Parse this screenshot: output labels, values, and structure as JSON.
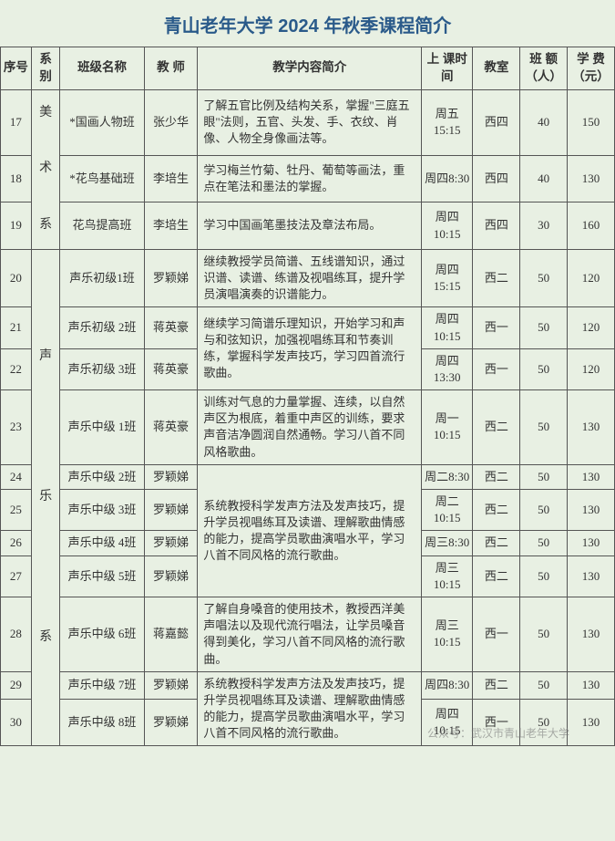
{
  "title": "青山老年大学 2024 年秋季课程简介",
  "columns": {
    "seq": "序号",
    "dept": "系别",
    "class": "班级名称",
    "teacher": "教 师",
    "desc": "教学内容简介",
    "time": "上 课时 间",
    "room": "教室",
    "cap": "班 额（人）",
    "fee": "学 费（元）"
  },
  "dept_art": "美术系",
  "dept_music": "声乐系",
  "rows": {
    "r17": {
      "seq": "17",
      "class": "*国画人物班",
      "teacher": "张少华",
      "desc": "了解五官比例及结构关系，掌握\"三庭五眼\"法则，五官、头发、手、衣纹、肖像、人物全身像画法等。",
      "time": "周五15:15",
      "room": "西四",
      "cap": "40",
      "fee": "150"
    },
    "r18": {
      "seq": "18",
      "class": "*花鸟基础班",
      "teacher": "李培生",
      "desc": "学习梅兰竹菊、牡丹、葡萄等画法，重点在笔法和墨法的掌握。",
      "time": "周四8:30",
      "room": "西四",
      "cap": "40",
      "fee": "130"
    },
    "r19": {
      "seq": "19",
      "class": "花鸟提高班",
      "teacher": "李培生",
      "desc": "学习中国画笔墨技法及章法布局。",
      "time": "周四10:15",
      "room": "西四",
      "cap": "30",
      "fee": "160"
    },
    "r20": {
      "seq": "20",
      "class": "声乐初级1班",
      "teacher": "罗颖娣",
      "desc": "继续教授学员简谱、五线谱知识，通过识谱、读谱、练谱及视唱练耳，提升学员演唱演奏的识谱能力。",
      "time": "周四15:15",
      "room": "西二",
      "cap": "50",
      "fee": "120"
    },
    "r21": {
      "seq": "21",
      "class": "声乐初级 2班",
      "teacher": "蒋英豪",
      "time": "周四10:15",
      "room": "西一",
      "cap": "50",
      "fee": "120"
    },
    "r22": {
      "seq": "22",
      "class": "声乐初级 3班",
      "teacher": "蒋英豪",
      "time": "周四13:30",
      "room": "西一",
      "cap": "50",
      "fee": "120"
    },
    "desc2122": "继续学习简谱乐理知识，开始学习和声与和弦知识，加强视唱练耳和节奏训练，掌握科学发声技巧，学习四首流行歌曲。",
    "r23": {
      "seq": "23",
      "class": "声乐中级 1班",
      "teacher": "蒋英豪",
      "desc": "训练对气息的力量掌握、连续，以自然声区为根底，着重中声区的训练，要求声音洁净圆润自然通畅。学习八首不同风格歌曲。",
      "time": "周一10:15",
      "room": "西二",
      "cap": "50",
      "fee": "130"
    },
    "r24": {
      "seq": "24",
      "class": "声乐中级 2班",
      "teacher": "罗颖娣",
      "time": "周二8:30",
      "room": "西二",
      "cap": "50",
      "fee": "130"
    },
    "r25": {
      "seq": "25",
      "class": "声乐中级 3班",
      "teacher": "罗颖娣",
      "time": "周二10:15",
      "room": "西二",
      "cap": "50",
      "fee": "130"
    },
    "r26": {
      "seq": "26",
      "class": "声乐中级 4班",
      "teacher": "罗颖娣",
      "time": "周三8:30",
      "room": "西二",
      "cap": "50",
      "fee": "130"
    },
    "r27": {
      "seq": "27",
      "class": "声乐中级 5班",
      "teacher": "罗颖娣",
      "time": "周三10:15",
      "room": "西二",
      "cap": "50",
      "fee": "130"
    },
    "desc2427": "系统教授科学发声方法及发声技巧，提升学员视唱练耳及读谱、理解歌曲情感的能力，提高学员歌曲演唱水平，学习八首不同风格的流行歌曲。",
    "r28": {
      "seq": "28",
      "class": "声乐中级 6班",
      "teacher": "蒋嘉懿",
      "desc": "了解自身嗓音的使用技术，教授西洋美声唱法以及现代流行唱法，让学员嗓音得到美化，学习八首不同风格的流行歌曲。",
      "time": "周三10:15",
      "room": "西一",
      "cap": "50",
      "fee": "130"
    },
    "r29": {
      "seq": "29",
      "class": "声乐中级 7班",
      "teacher": "罗颖娣",
      "time": "周四8:30",
      "room": "西二",
      "cap": "50",
      "fee": "130"
    },
    "r30": {
      "seq": "30",
      "class": "声乐中级 8班",
      "teacher": "罗颖娣",
      "time": "周四10:15",
      "room": "西一",
      "cap": "50",
      "fee": "130"
    },
    "desc2930": "系统教授科学发声方法及发声技巧，提升学员视唱练耳及读谱、理解歌曲情感的能力，提高学员歌曲演唱水平，学习八首不同风格的流行歌曲。"
  },
  "watermark": "公众号：武汉市青山老年大学"
}
